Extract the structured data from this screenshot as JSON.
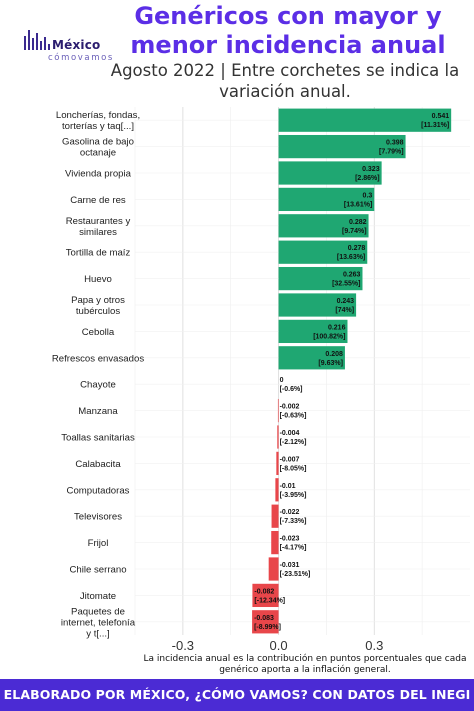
{
  "header": {
    "title": "Genéricos con mayor y menor incidencia anual",
    "subtitle": "Agosto 2022 | Entre corchetes se indica la variación anual.",
    "logo_main": "México",
    "logo_sub": "cómovamos"
  },
  "caption": "La incidencia anual es la contribución en puntos porcentuales que cada genérico aporta a la inflación general.",
  "footer": "ELABORADO POR MÉXICO, ¿CÓMO VAMOS? CON DATOS DEL INEGI",
  "colors": {
    "positive": "#1fa772",
    "negative": "#e8464a",
    "grid": "#dddddd",
    "title": "#5b2ee6",
    "footer_bg": "#4b2bd4"
  },
  "chart_data": {
    "type": "bar",
    "orientation": "horizontal",
    "categories": [
      "Loncherías, fondas, torterías y taq[...]",
      "Gasolina de bajo octanaje",
      "Vivienda propia",
      "Carne de res",
      "Restaurantes y similares",
      "Tortilla de maíz",
      "Huevo",
      "Papa y otros tubérculos",
      "Cebolla",
      "Refrescos envasados",
      "Chayote",
      "Manzana",
      "Toallas sanitarias",
      "Calabacita",
      "Computadoras",
      "Televisores",
      "Frijol",
      "Chile serrano",
      "Jitomate",
      "Paquetes de internet, telefonía y t[...]"
    ],
    "values": [
      0.541,
      0.398,
      0.323,
      0.3,
      0.282,
      0.278,
      0.263,
      0.243,
      0.216,
      0.208,
      0,
      -0.002,
      -0.004,
      -0.007,
      -0.01,
      -0.022,
      -0.023,
      -0.031,
      -0.082,
      -0.083
    ],
    "value_labels": [
      "0.541",
      "0.398",
      "0.323",
      "0.3",
      "0.282",
      "0.278",
      "0.263",
      "0.243",
      "0.216",
      "0.208",
      "0",
      "-0.002",
      "-0.004",
      "-0.007",
      "-0.01",
      "-0.022",
      "-0.023",
      "-0.031",
      "-0.082",
      "-0.083"
    ],
    "annual_variation": [
      "[11.31%]",
      "[7.79%]",
      "[2.86%]",
      "[13.61%]",
      "[9.74%]",
      "[13.63%]",
      "[32.55%]",
      "[74%]",
      "[100.82%]",
      "[9.63%]",
      "[-0.6%]",
      "[-0.63%]",
      "[-2.12%]",
      "[-8.05%]",
      "[-3.95%]",
      "[-7.33%]",
      "[-4.17%]",
      "[-23.51%]",
      "[-12.34%]",
      "[-8.99%]"
    ],
    "xticks": [
      -0.3,
      0.0,
      0.3
    ],
    "xtick_labels": [
      "-0.3",
      "0.0",
      "0.3"
    ],
    "xlim": [
      -0.45,
      0.6
    ],
    "grid": true
  }
}
